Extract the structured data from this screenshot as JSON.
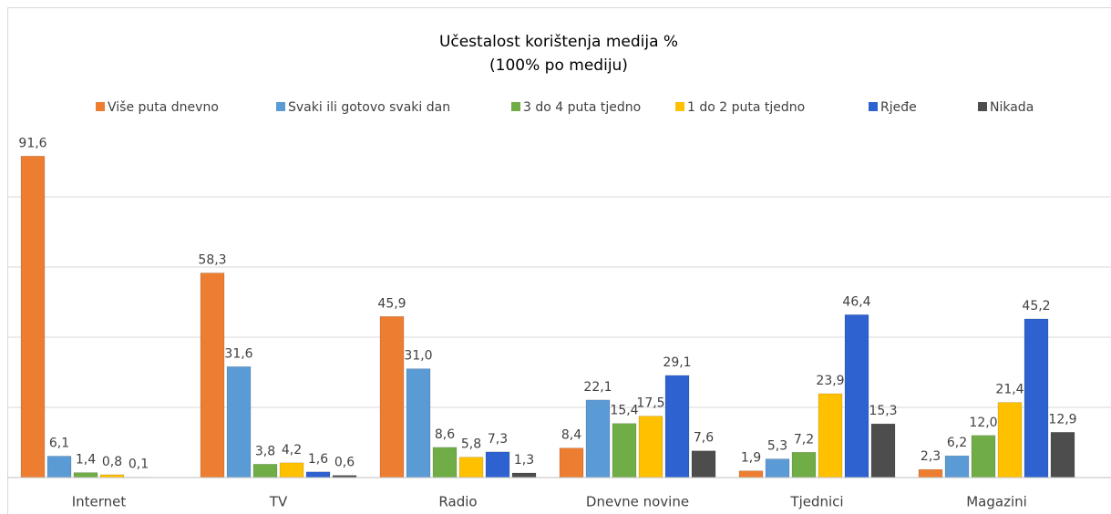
{
  "chart_data": {
    "type": "bar",
    "title": "Učestalost korištenja medija %",
    "subtitle": "(100% po mediju)",
    "categories": [
      "Internet",
      "TV",
      "Radio",
      "Dnevne novine",
      "Tjednici",
      "Magazini"
    ],
    "series": [
      {
        "name": "Više puta dnevno",
        "color": "#ED7D31",
        "values": [
          91.6,
          58.3,
          45.9,
          8.4,
          1.9,
          2.3
        ],
        "value_labels": [
          "91,6",
          "58,3",
          "45,9",
          "8,4",
          "1,9",
          "2,3"
        ]
      },
      {
        "name": "Svaki ili gotovo svaki dan",
        "color": "#5B9BD5",
        "values": [
          6.1,
          31.6,
          31.0,
          22.1,
          5.3,
          6.2
        ],
        "value_labels": [
          "6,1",
          "31,6",
          "31,0",
          "22,1",
          "5,3",
          "6,2"
        ]
      },
      {
        "name": "3 do 4 puta tjedno",
        "color": "#70AD47",
        "values": [
          1.4,
          3.8,
          8.6,
          15.4,
          7.2,
          12.0
        ],
        "value_labels": [
          "1,4",
          "3,8",
          "8,6",
          "15,4",
          "7,2",
          "12,0"
        ]
      },
      {
        "name": "1 do 2 puta tjedno",
        "color": "#FFC000",
        "values": [
          0.8,
          4.2,
          5.8,
          17.5,
          23.9,
          21.4
        ],
        "value_labels": [
          "0,8",
          "4,2",
          "5,8",
          "17,5",
          "23,9",
          "21,4"
        ]
      },
      {
        "name": "Rjeđe",
        "color": "#2E62D0",
        "values": [
          0.1,
          1.6,
          7.3,
          29.1,
          46.4,
          45.2
        ],
        "value_labels": [
          "0,1",
          "1,6",
          "7,3",
          "29,1",
          "46,4",
          "45,2"
        ]
      },
      {
        "name": "Nikada",
        "color": "#4D4D4D",
        "values": [
          null,
          0.6,
          1.3,
          7.6,
          15.3,
          12.9
        ],
        "value_labels": [
          null,
          "0,6",
          "1,3",
          "7,6",
          "15,3",
          "12,9"
        ]
      }
    ],
    "ylim": [
      0,
      100
    ],
    "yticks": [
      0,
      20,
      40,
      60,
      80
    ],
    "grid": true
  }
}
